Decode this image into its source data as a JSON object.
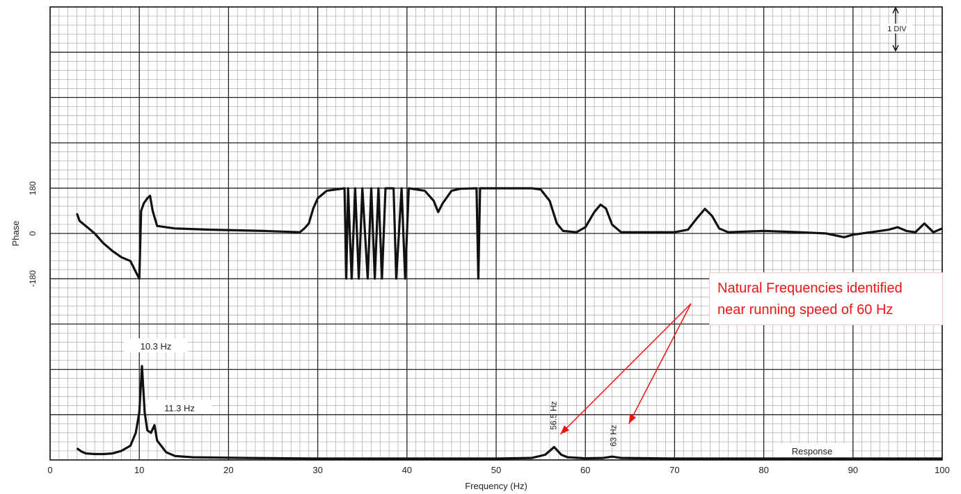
{
  "chart_data": {
    "type": "line",
    "xlabel": "Frequency (Hz)",
    "xlim": [
      0,
      100
    ],
    "xticks": [
      0,
      10,
      20,
      30,
      40,
      50,
      60,
      70,
      80,
      90,
      100
    ],
    "grid": true,
    "scale_marker": "1 DIV",
    "phase": {
      "ylabel": "Phase",
      "yticks": [
        180,
        0,
        -180
      ],
      "ylim": [
        -180,
        180
      ],
      "values": [
        [
          3.0,
          80
        ],
        [
          3.3,
          50
        ],
        [
          4,
          30
        ],
        [
          5,
          0
        ],
        [
          6,
          -40
        ],
        [
          7,
          -70
        ],
        [
          8,
          -95
        ],
        [
          9,
          -110
        ],
        [
          9.7,
          -160
        ],
        [
          10.0,
          -180
        ],
        [
          10.2,
          90
        ],
        [
          10.5,
          120
        ],
        [
          10.9,
          140
        ],
        [
          11.2,
          150
        ],
        [
          11.5,
          90
        ],
        [
          12,
          30
        ],
        [
          14,
          20
        ],
        [
          18,
          15
        ],
        [
          24,
          10
        ],
        [
          28,
          5
        ],
        [
          28.5,
          20
        ],
        [
          29,
          40
        ],
        [
          29.5,
          100
        ],
        [
          30.0,
          140
        ],
        [
          31,
          170
        ],
        [
          32,
          175
        ],
        [
          33.0,
          180
        ],
        [
          33.2,
          -180
        ],
        [
          33.4,
          180
        ],
        [
          33.8,
          -180
        ],
        [
          34.2,
          180
        ],
        [
          34.6,
          -180
        ],
        [
          35.0,
          180
        ],
        [
          35.6,
          -180
        ],
        [
          36.0,
          180
        ],
        [
          36.4,
          -180
        ],
        [
          36.8,
          180
        ],
        [
          37.2,
          -180
        ],
        [
          37.6,
          180
        ],
        [
          38.5,
          180
        ],
        [
          38.8,
          -180
        ],
        [
          39.4,
          180
        ],
        [
          39.8,
          -180
        ],
        [
          40.2,
          180
        ],
        [
          42,
          170
        ],
        [
          43,
          130
        ],
        [
          43.5,
          85
        ],
        [
          44,
          120
        ],
        [
          45,
          170
        ],
        [
          46,
          178
        ],
        [
          47.8,
          180
        ],
        [
          48.0,
          -180
        ],
        [
          48.2,
          180
        ],
        [
          54,
          180
        ],
        [
          55,
          175
        ],
        [
          56,
          130
        ],
        [
          56.8,
          40
        ],
        [
          57.5,
          10
        ],
        [
          59,
          5
        ],
        [
          60,
          25
        ],
        [
          61,
          85
        ],
        [
          61.7,
          115
        ],
        [
          62.3,
          100
        ],
        [
          63,
          35
        ],
        [
          64,
          5
        ],
        [
          67,
          5
        ],
        [
          70,
          5
        ],
        [
          71.5,
          15
        ],
        [
          72.5,
          60
        ],
        [
          73.4,
          98
        ],
        [
          74.2,
          70
        ],
        [
          75,
          20
        ],
        [
          76,
          5
        ],
        [
          80,
          10
        ],
        [
          84,
          5
        ],
        [
          87,
          0
        ],
        [
          89,
          -15
        ],
        [
          90,
          -5
        ],
        [
          92,
          5
        ],
        [
          94,
          15
        ],
        [
          95,
          25
        ],
        [
          96,
          10
        ],
        [
          97,
          5
        ],
        [
          98,
          40
        ],
        [
          99,
          5
        ],
        [
          100,
          20
        ]
      ]
    },
    "response": {
      "label": "Response",
      "values": [
        [
          3.0,
          0.8
        ],
        [
          3.5,
          0.55
        ],
        [
          4,
          0.4
        ],
        [
          5,
          0.35
        ],
        [
          6,
          0.35
        ],
        [
          7,
          0.4
        ],
        [
          8,
          0.6
        ],
        [
          9,
          1.0
        ],
        [
          9.6,
          2.0
        ],
        [
          10.0,
          3.6
        ],
        [
          10.3,
          7.2
        ],
        [
          10.6,
          3.6
        ],
        [
          10.9,
          2.2
        ],
        [
          11.3,
          2.0
        ],
        [
          11.7,
          2.6
        ],
        [
          12,
          1.4
        ],
        [
          13,
          0.5
        ],
        [
          14,
          0.2
        ],
        [
          16,
          0.1
        ],
        [
          22,
          0.05
        ],
        [
          30,
          0.0
        ],
        [
          50,
          0.0
        ],
        [
          54,
          0.05
        ],
        [
          55.5,
          0.3
        ],
        [
          56.5,
          0.9
        ],
        [
          57.3,
          0.3
        ],
        [
          58,
          0.1
        ],
        [
          60,
          0.02
        ],
        [
          62,
          0.05
        ],
        [
          63,
          0.15
        ],
        [
          64,
          0.05
        ],
        [
          70,
          0.0
        ],
        [
          100,
          0.0
        ]
      ]
    },
    "annotations": [
      {
        "text": "10.3 Hz",
        "x": 10.3
      },
      {
        "text": "11.3 Hz",
        "x": 11.3
      },
      {
        "text": "56.5 Hz",
        "x": 56.5
      },
      {
        "text": "63 Hz",
        "x": 63
      }
    ],
    "callout": {
      "lines": [
        "Natural Frequencies identified",
        "near running speed of 60 Hz"
      ],
      "color": "#f01414",
      "arrow_targets": [
        56.5,
        63
      ]
    }
  }
}
